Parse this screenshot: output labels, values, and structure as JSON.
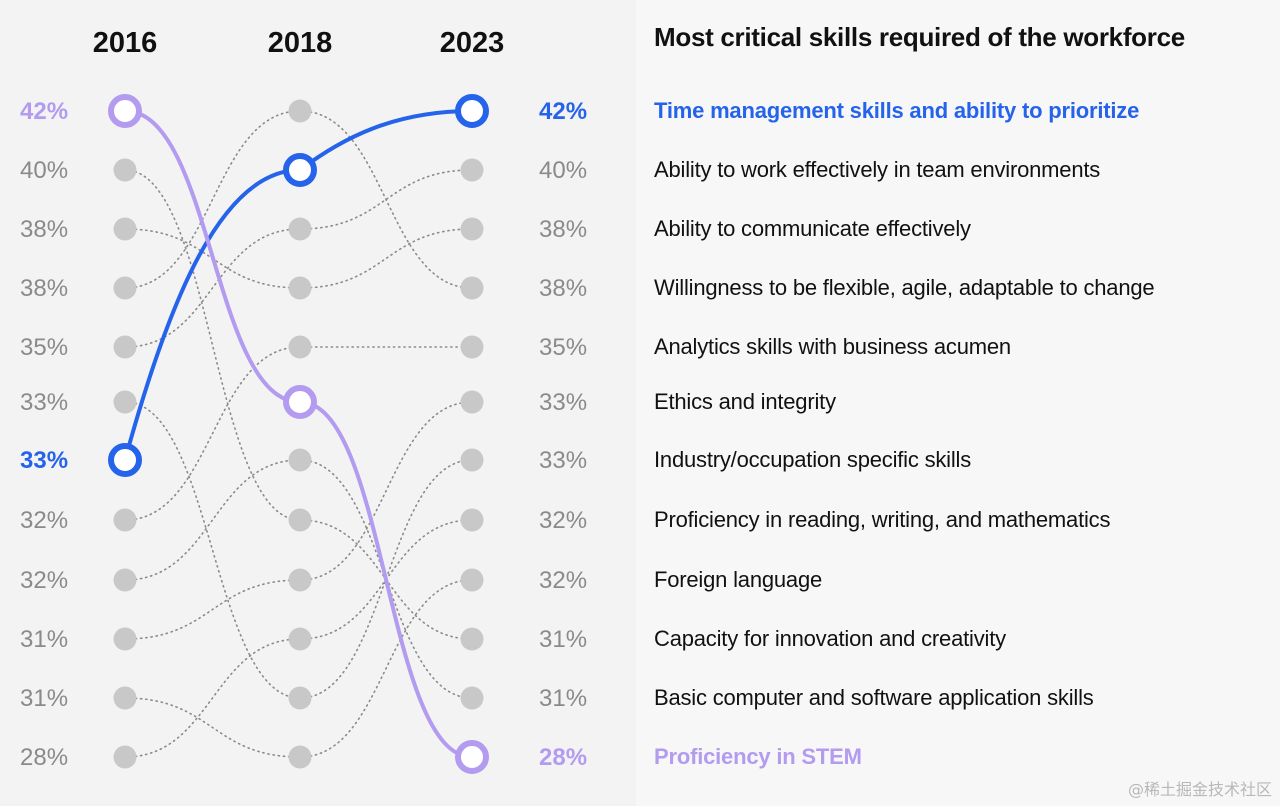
{
  "chart_data": {
    "type": "slope",
    "title": "Most critical skills required of the workforce",
    "years": [
      "2016",
      "2018",
      "2023"
    ],
    "skills": [
      {
        "name": "Time management skills and ability to prioritize",
        "rank": [
          6,
          1,
          0
        ],
        "highlight": "blue"
      },
      {
        "name": "Ability to work effectively in team environments",
        "rank": [
          4,
          2,
          1
        ]
      },
      {
        "name": "Ability to communicate effectively",
        "rank": [
          2,
          3,
          2
        ]
      },
      {
        "name": "Willingness to be flexible, agile, adaptable to change",
        "rank": [
          3,
          0,
          3
        ]
      },
      {
        "name": "Analytics skills with business acumen",
        "rank": [
          7,
          4,
          4
        ]
      },
      {
        "name": "Ethics and integrity",
        "rank": [
          9,
          8,
          5
        ]
      },
      {
        "name": "Industry/occupation specific skills",
        "rank": [
          5,
          10,
          6
        ]
      },
      {
        "name": "Proficiency in reading, writing, and mathematics",
        "rank": [
          11,
          9,
          7
        ]
      },
      {
        "name": "Foreign language",
        "rank": [
          10,
          11,
          8
        ]
      },
      {
        "name": "Capacity for innovation and creativity",
        "rank": [
          1,
          7,
          9
        ]
      },
      {
        "name": "Basic computer and software application skills",
        "rank": [
          8,
          6,
          10
        ]
      },
      {
        "name": "Proficiency in STEM",
        "rank": [
          0,
          5,
          11
        ],
        "highlight": "purple"
      }
    ],
    "left_percent_labels_2016": [
      "42%",
      "40%",
      "38%",
      "38%",
      "35%",
      "33%",
      "33%",
      "32%",
      "32%",
      "31%",
      "31%",
      "28%"
    ],
    "right_percent_labels_2023": [
      "42%",
      "40%",
      "38%",
      "38%",
      "35%",
      "33%",
      "33%",
      "32%",
      "32%",
      "31%",
      "31%",
      "28%"
    ],
    "colors": {
      "blue": "#2563eb",
      "purple": "#b39bf0",
      "dot": "#c8c8c8",
      "connector": "#8a8a8a",
      "pct_text": "#8a8a8a"
    }
  },
  "watermark": "@稀土掘金技术社区"
}
